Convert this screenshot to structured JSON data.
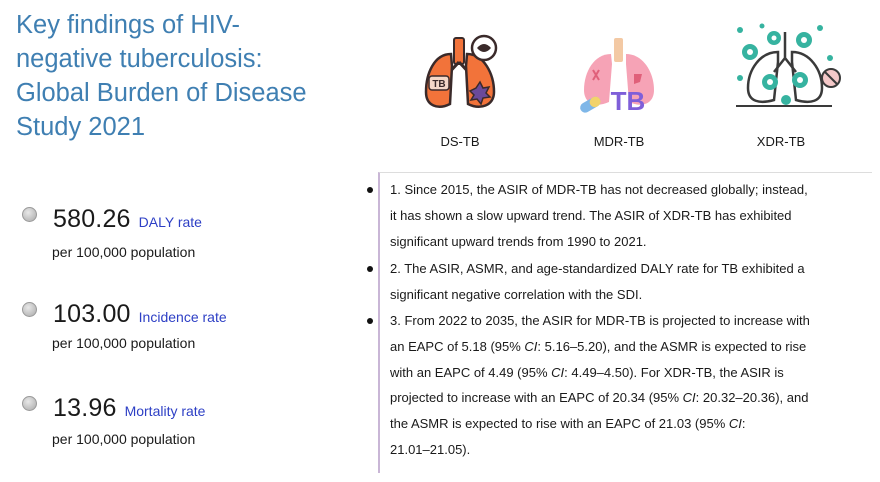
{
  "title_lines": [
    "Key findings of HIV-",
    "negative tuberculosis:",
    "Global Burden of Disease",
    "Study 2021"
  ],
  "stats": [
    {
      "value": "580.26",
      "label": "DALY rate",
      "unit": "per 100,000 population"
    },
    {
      "value": "103.00",
      "label": "Incidence rate",
      "unit": "per 100,000 population"
    },
    {
      "value": "13.96",
      "label": "Mortality rate",
      "unit": "per 100,000 population"
    }
  ],
  "icons": [
    {
      "name": "ds-tb-lungs-icon",
      "label": "DS-TB",
      "badge": "TB"
    },
    {
      "name": "mdr-tb-lungs-icon",
      "label": "MDR-TB",
      "badge": "TB"
    },
    {
      "name": "xdr-tb-lungs-icon",
      "label": "XDR-TB"
    }
  ],
  "findings": {
    "f1": [
      "1. Since 2015, the ASIR of MDR-TB has not decreased globally; instead,",
      "it has shown a slow upward trend. The ASIR of XDR-TB has exhibited",
      "significant upward trends from 1990 to 2021."
    ],
    "f2": [
      "2. The ASIR, ASMR, and age-standardized DALY rate for TB exhibited a",
      "significant negative correlation with the SDI."
    ],
    "f3": {
      "l1": "3. From 2022 to 2035, the ASIR for MDR-TB is projected to increase with",
      "l2_a": "an EAPC of 5.18 (95% ",
      "ci": "CI",
      "l2_b": ": 5.16–5.20), and the ASMR is expected to rise",
      "l3_a": "with an EAPC of 4.49 (95% ",
      "l3_b": ": 4.49–4.50). For XDR-TB, the ASIR is",
      "l4_a": "projected to increase with an EAPC of 20.34 (95% ",
      "l4_b": ": 20.32–20.36), and",
      "l5_a": "the ASMR is expected to rise with an EAPC of 21.03 (95% ",
      "l5_b": ":",
      "l6": "21.01–21.05)."
    }
  },
  "colors": {
    "title": "#3f7fb2",
    "rate_label": "#2d3fc5",
    "lung_orange": "#f2733a",
    "lung_pink": "#f6a3b6",
    "virus_teal": "#36b3a0"
  }
}
